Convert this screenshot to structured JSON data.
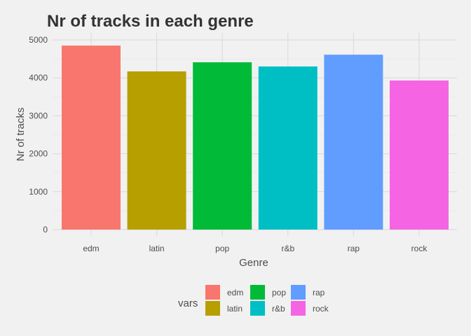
{
  "chart_data": {
    "type": "bar",
    "title": "Nr of tracks in each genre",
    "xlabel": "Genre",
    "ylabel": "Nr of tracks",
    "categories": [
      "edm",
      "latin",
      "pop",
      "r&b",
      "rap",
      "rock"
    ],
    "values": [
      4850,
      4170,
      4410,
      4300,
      4610,
      3930
    ],
    "colors": [
      "#F8766D",
      "#B79F00",
      "#00BA38",
      "#00BFC4",
      "#619CFF",
      "#F564E3"
    ],
    "ylim": [
      0,
      5000
    ],
    "yticks": [
      0,
      1000,
      2000,
      3000,
      4000,
      5000
    ],
    "yticklabels": [
      "0",
      "1000",
      "2000",
      "3000",
      "4000",
      "5000"
    ],
    "grid": true,
    "legend": {
      "title": "vars",
      "position": "bottom",
      "entries": [
        "edm",
        "latin",
        "pop",
        "r&b",
        "rap",
        "rock"
      ]
    }
  }
}
